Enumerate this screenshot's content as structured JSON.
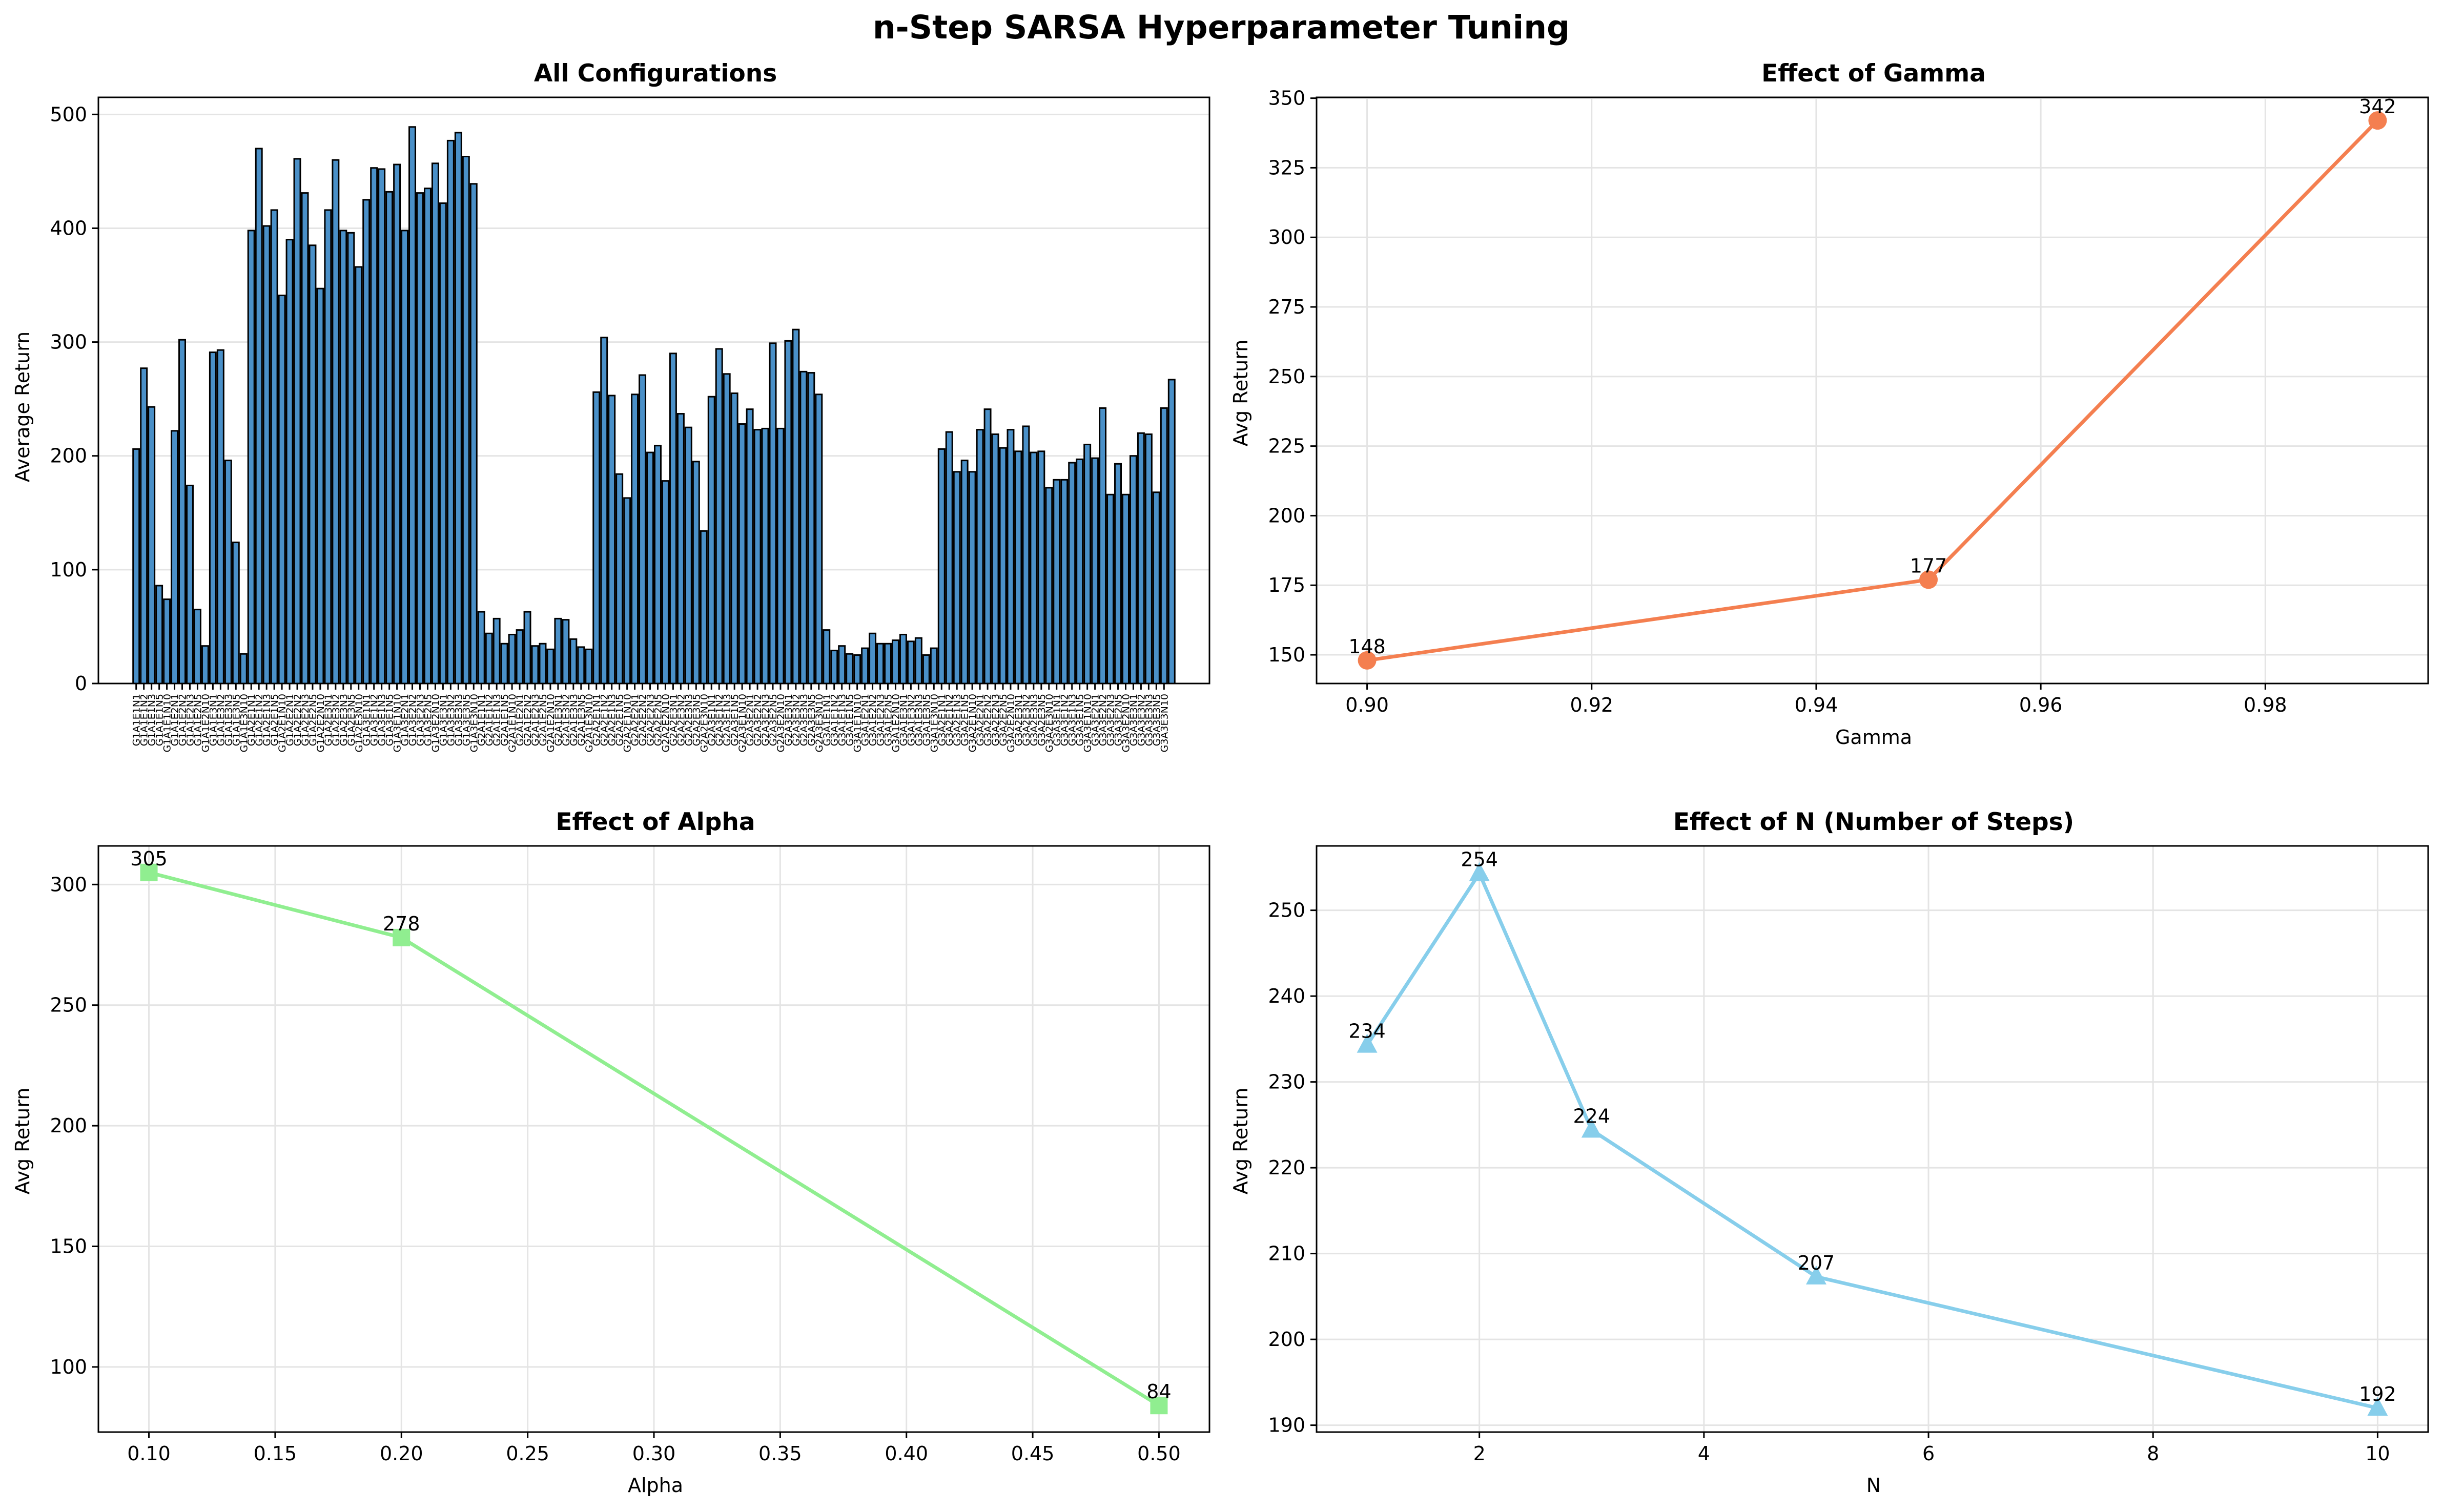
{
  "figure": {
    "suptitle": "n-Step SARSA Hyperparameter Tuning"
  },
  "chart_data": [
    {
      "id": "all-configs",
      "type": "bar",
      "title": "All Configurations",
      "xlabel": "",
      "ylabel": "Average Return",
      "ylim": [
        0,
        515
      ],
      "yticks": [
        0,
        100,
        200,
        300,
        400,
        500
      ],
      "grid": true,
      "bar_color": "#4a90c8",
      "edge_color": "#000000",
      "values": [
        206,
        277,
        243,
        86,
        74,
        222,
        302,
        174,
        65,
        33,
        291,
        293,
        196,
        124,
        26,
        398,
        470,
        402,
        416,
        341,
        390,
        461,
        431,
        385,
        347,
        416,
        460,
        398,
        396,
        366,
        425,
        453,
        452,
        432,
        456,
        398,
        489,
        431,
        435,
        457,
        422,
        477,
        484,
        463,
        439,
        63,
        44,
        57,
        35,
        43,
        47,
        63,
        33,
        35,
        30,
        57,
        56,
        39,
        32,
        30,
        256,
        304,
        253,
        184,
        163,
        254,
        271,
        203,
        209,
        178,
        290,
        237,
        225,
        195,
        134,
        252,
        294,
        272,
        255,
        228,
        241,
        223,
        224,
        299,
        224,
        301,
        311,
        274,
        273,
        254,
        47,
        29,
        33,
        26,
        25,
        31,
        44,
        35,
        35,
        38,
        43,
        37,
        40,
        25,
        31,
        206,
        221,
        186,
        196,
        186,
        223,
        241,
        219,
        207,
        223,
        204,
        226,
        203,
        204,
        172,
        179,
        179,
        194,
        197,
        210,
        198,
        242,
        166,
        193,
        166,
        200,
        220,
        219,
        168,
        242,
        267
      ],
      "xtick_labels": [
        "G1A1E1N1",
        "G1A1E1N2",
        "G1A1E1N3",
        "G1A1E1N5",
        "G1A1E1N10",
        "G1A1E2N1",
        "G1A1E2N2",
        "G1A1E2N3",
        "G1A1E2N5",
        "G1A1E2N10",
        "G1A1E3N1",
        "G1A1E3N2",
        "G1A1E3N3",
        "G1A1E3N5",
        "G1A1E3N10",
        "G1A2E1N1",
        "G1A2E1N2",
        "G1A2E1N3",
        "G1A2E1N5",
        "G1A2E1N10",
        "G1A2E2N1",
        "G1A2E2N2",
        "G1A2E2N3",
        "G1A2E2N5",
        "G1A2E2N10",
        "G1A2E3N1",
        "G1A2E3N2",
        "G1A2E3N3",
        "G1A2E3N5",
        "G1A2E3N10",
        "G1A3E1N1",
        "G1A3E1N2",
        "G1A3E1N3",
        "G1A3E1N5",
        "G1A3E1N10",
        "G1A3E2N1",
        "G1A3E2N2",
        "G1A3E2N3",
        "G1A3E2N5",
        "G1A3E2N10",
        "G1A3E3N1",
        "G1A3E3N2",
        "G1A3E3N3",
        "G1A3E3N5",
        "G1A3E3N10",
        "G2A1E1N1",
        "G2A1E1N2",
        "G2A1E1N3",
        "G2A1E1N5",
        "G2A1E1N10",
        "G2A1E2N1",
        "G2A1E2N2",
        "G2A1E2N3",
        "G2A1E2N5",
        "G2A1E2N10",
        "G2A1E3N1",
        "G2A1E3N2",
        "G2A1E3N3",
        "G2A1E3N5",
        "G2A1E3N10",
        "G2A2E1N1",
        "G2A2E1N2",
        "G2A2E1N3",
        "G2A2E1N5",
        "G2A2E1N10",
        "G2A2E2N1",
        "G2A2E2N2",
        "G2A2E2N3",
        "G2A2E2N5",
        "G2A2E2N10",
        "G2A2E3N1",
        "G2A2E3N2",
        "G2A2E3N3",
        "G2A2E3N5",
        "G2A2E3N10",
        "G2A3E1N1",
        "G2A3E1N2",
        "G2A3E1N3",
        "G2A3E1N5",
        "G2A3E1N10",
        "G2A3E2N1",
        "G2A3E2N2",
        "G2A3E2N3",
        "G2A3E2N5",
        "G2A3E2N10",
        "G2A3E3N1",
        "G2A3E3N2",
        "G2A3E3N3",
        "G2A3E3N5",
        "G2A3E3N10",
        "G3A1E1N1",
        "G3A1E1N2",
        "G3A1E1N3",
        "G3A1E1N5",
        "G3A1E1N10",
        "G3A1E2N1",
        "G3A1E2N2",
        "G3A1E2N3",
        "G3A1E2N5",
        "G3A1E2N10",
        "G3A1E3N1",
        "G3A1E3N2",
        "G3A1E3N3",
        "G3A1E3N5",
        "G3A1E3N10",
        "G3A2E1N1",
        "G3A2E1N2",
        "G3A2E1N3",
        "G3A2E1N5",
        "G3A2E1N10",
        "G3A2E2N1",
        "G3A2E2N2",
        "G3A2E2N3",
        "G3A2E2N5",
        "G3A2E2N10",
        "G3A2E3N1",
        "G3A2E3N2",
        "G3A2E3N3",
        "G3A2E3N5",
        "G3A2E3N10",
        "G3A3E1N1",
        "G3A3E1N2",
        "G3A3E1N3",
        "G3A3E1N5",
        "G3A3E1N10",
        "G3A3E2N1",
        "G3A3E2N2",
        "G3A3E2N3",
        "G3A3E2N5",
        "G3A3E2N10",
        "G3A3E3N1",
        "G3A3E3N2",
        "G3A3E3N3",
        "G3A3E3N5",
        "G3A3E3N10"
      ]
    },
    {
      "id": "gamma",
      "type": "line",
      "title": "Effect of Gamma",
      "xlabel": "Gamma",
      "ylabel": "Avg Return",
      "x": [
        0.9,
        0.95,
        0.99
      ],
      "y": [
        148,
        177,
        342
      ],
      "point_labels": [
        "148",
        "177",
        "342"
      ],
      "xlim": [
        0.8955,
        0.9945
      ],
      "ylim": [
        139.7,
        350.3
      ],
      "xticks": [
        0.9,
        0.92,
        0.94,
        0.96,
        0.98
      ],
      "xtick_labels": [
        "0.90",
        "0.92",
        "0.94",
        "0.96",
        "0.98"
      ],
      "yticks": [
        150,
        175,
        200,
        225,
        250,
        275,
        300,
        325,
        350
      ],
      "grid": true,
      "color": "#f47f50",
      "marker": "circle"
    },
    {
      "id": "alpha",
      "type": "line",
      "title": "Effect of Alpha",
      "xlabel": "Alpha",
      "ylabel": "Avg Return",
      "x": [
        0.1,
        0.2,
        0.5
      ],
      "y": [
        305,
        278,
        84
      ],
      "point_labels": [
        "305",
        "278",
        "84"
      ],
      "xlim": [
        0.08,
        0.52
      ],
      "ylim": [
        73,
        316
      ],
      "xticks": [
        0.1,
        0.15,
        0.2,
        0.25,
        0.3,
        0.35,
        0.4,
        0.45,
        0.5
      ],
      "xtick_labels": [
        "0.10",
        "0.15",
        "0.20",
        "0.25",
        "0.30",
        "0.35",
        "0.40",
        "0.45",
        "0.50"
      ],
      "yticks": [
        100,
        150,
        200,
        250,
        300
      ],
      "grid": true,
      "color": "#90ee90",
      "marker": "square"
    },
    {
      "id": "n-steps",
      "type": "line",
      "title": "Effect of N (Number of Steps)",
      "xlabel": "N",
      "ylabel": "Avg Return",
      "x": [
        1,
        2,
        3,
        5,
        10
      ],
      "y": [
        234.3,
        254.3,
        224.4,
        207.3,
        192.0
      ],
      "point_labels": [
        "234",
        "254",
        "224",
        "207",
        "192"
      ],
      "xlim": [
        0.55,
        10.45
      ],
      "ylim": [
        189.2,
        257.5
      ],
      "xticks": [
        2,
        4,
        6,
        8,
        10
      ],
      "xtick_labels": [
        "2",
        "4",
        "6",
        "8",
        "10"
      ],
      "yticks": [
        190,
        200,
        210,
        220,
        230,
        240,
        250
      ],
      "grid": true,
      "color": "#87ceeb",
      "marker": "triangle"
    }
  ]
}
